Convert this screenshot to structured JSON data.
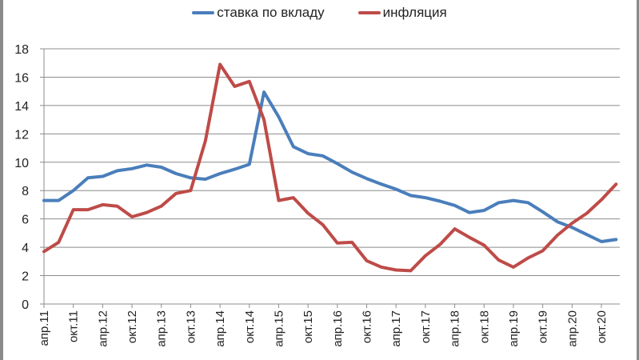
{
  "chart_data": {
    "type": "line",
    "title": "",
    "xlabel": "",
    "ylabel": "",
    "ylim": [
      0,
      18
    ],
    "yticks": [
      0,
      2,
      4,
      6,
      8,
      10,
      12,
      14,
      16,
      18
    ],
    "grid": true,
    "legend_position": "top",
    "tick_labels": [
      "апр.11",
      "окт.11",
      "апр.12",
      "окт.12",
      "апр.13",
      "окт.13",
      "апр.14",
      "окт.14",
      "апр.15",
      "окт.15",
      "апр.16",
      "окт.16",
      "апр.17",
      "окт.17",
      "апр.18",
      "окт.18",
      "апр.19",
      "окт.19",
      "апр.20",
      "окт.20"
    ],
    "x_points_per_tick": 2,
    "series": [
      {
        "name": "ставка по вкладу",
        "color": "#4a7ebb",
        "values": [
          7.3,
          7.3,
          8.0,
          8.9,
          9.0,
          9.4,
          9.55,
          9.8,
          9.65,
          9.2,
          8.9,
          8.8,
          9.2,
          9.5,
          9.85,
          14.95,
          13.2,
          11.1,
          10.6,
          10.45,
          9.9,
          9.3,
          8.85,
          8.45,
          8.1,
          7.65,
          7.5,
          7.25,
          6.95,
          6.45,
          6.6,
          7.15,
          7.3,
          7.15,
          6.5,
          5.8,
          5.4,
          4.9,
          4.4,
          4.55
        ]
      },
      {
        "name": "инфляция",
        "color": "#be4b48",
        "values": [
          3.7,
          4.35,
          6.65,
          6.65,
          7.0,
          6.9,
          6.15,
          6.45,
          6.9,
          7.8,
          8.0,
          11.5,
          16.9,
          15.35,
          15.7,
          13.0,
          7.3,
          7.5,
          6.4,
          5.6,
          4.3,
          4.35,
          3.05,
          2.6,
          2.4,
          2.35,
          3.4,
          4.2,
          5.3,
          4.7,
          4.15,
          3.1,
          2.6,
          3.25,
          3.75,
          4.85,
          5.7,
          6.4,
          7.35,
          8.45
        ]
      }
    ]
  },
  "legend": {
    "items": [
      {
        "label": "ставка по вкладу",
        "color": "#4a7ebb"
      },
      {
        "label": "инфляция",
        "color": "#be4b48"
      }
    ]
  }
}
